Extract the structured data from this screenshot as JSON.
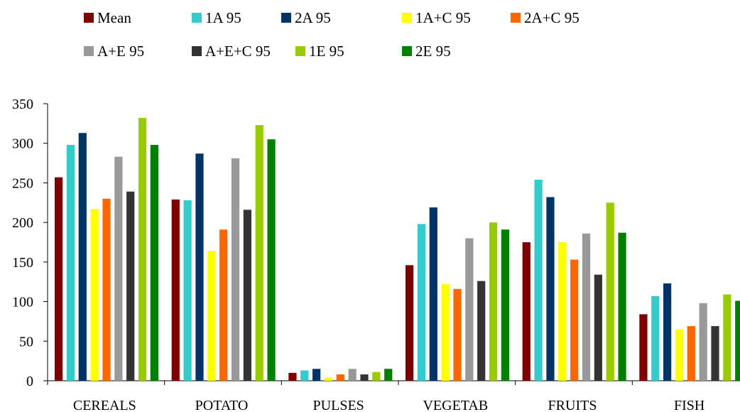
{
  "chart_data": {
    "type": "bar",
    "title": "",
    "xlabel": "",
    "ylabel": "",
    "categories": [
      "CEREALS",
      "POTATO",
      "PULSES",
      "VEGETAB",
      "FRUITS",
      "FISH"
    ],
    "ylim": [
      0,
      350
    ],
    "yticks": [
      0,
      50,
      100,
      150,
      200,
      250,
      300,
      350
    ],
    "grid": false,
    "legend_placement": "top",
    "series": [
      {
        "name": "Mean",
        "color": "#7f0000",
        "values": [
          257,
          229,
          10,
          146,
          175,
          84
        ]
      },
      {
        "name": "1A 95",
        "color": "#33cccc",
        "values": [
          298,
          228,
          13,
          198,
          254,
          107
        ]
      },
      {
        "name": "2A 95",
        "color": "#003366",
        "values": [
          313,
          287,
          15,
          219,
          232,
          123
        ]
      },
      {
        "name": "1A+C 95",
        "color": "#ffff00",
        "values": [
          217,
          164,
          4,
          122,
          175,
          65
        ]
      },
      {
        "name": "2A+C 95",
        "color": "#ff6600",
        "values": [
          230,
          191,
          8,
          116,
          153,
          69
        ]
      },
      {
        "name": "A+E 95",
        "color": "#999999",
        "values": [
          283,
          281,
          15,
          180,
          186,
          98
        ]
      },
      {
        "name": "A+E+C 95",
        "color": "#333333",
        "values": [
          239,
          216,
          8,
          126,
          134,
          69
        ]
      },
      {
        "name": "1E 95",
        "color": "#99cc00",
        "values": [
          332,
          323,
          11,
          200,
          225,
          109
        ]
      },
      {
        "name": "2E 95",
        "color": "#008000",
        "values": [
          298,
          305,
          15,
          191,
          187,
          101
        ]
      }
    ]
  }
}
